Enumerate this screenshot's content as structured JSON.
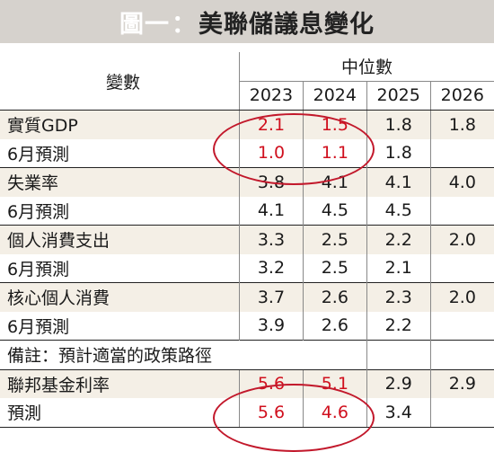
{
  "title": {
    "prefix": "圖一",
    "separator": "：",
    "main": "美聯儲議息變化"
  },
  "header": {
    "variable": "變數",
    "median": "中位數",
    "years": [
      "2023",
      "2024",
      "2025",
      "2026"
    ]
  },
  "rows": [
    {
      "label": "實質GDP",
      "values": [
        "2.1",
        "1.5",
        "1.8",
        "1.8"
      ]
    },
    {
      "label": "6月預測",
      "values": [
        "1.0",
        "1.1",
        "1.8",
        ""
      ]
    },
    {
      "label": "失業率",
      "values": [
        "3.8",
        "4.1",
        "4.1",
        "4.0"
      ]
    },
    {
      "label": "6月預測",
      "values": [
        "4.1",
        "4.5",
        "4.5",
        ""
      ]
    },
    {
      "label": "個人消費支出",
      "values": [
        "3.3",
        "2.5",
        "2.2",
        "2.0"
      ]
    },
    {
      "label": "6月預測",
      "values": [
        "3.2",
        "2.5",
        "2.1",
        ""
      ]
    },
    {
      "label": "核心個人消費",
      "values": [
        "3.7",
        "2.6",
        "2.3",
        "2.0"
      ]
    },
    {
      "label": "6月預測",
      "values": [
        "3.9",
        "2.6",
        "2.2",
        ""
      ]
    }
  ],
  "note": "備註：預計適當的政策路徑",
  "rate_rows": [
    {
      "label": "聯邦基金利率",
      "values": [
        "5.6",
        "5.1",
        "2.9",
        "2.9"
      ]
    },
    {
      "label": "預測",
      "values": [
        "5.6",
        "4.6",
        "3.4",
        ""
      ]
    }
  ],
  "colors": {
    "highlight": "#d0101e",
    "title_bg": "#d6d2cd",
    "row_shade": "#f4efe6"
  }
}
